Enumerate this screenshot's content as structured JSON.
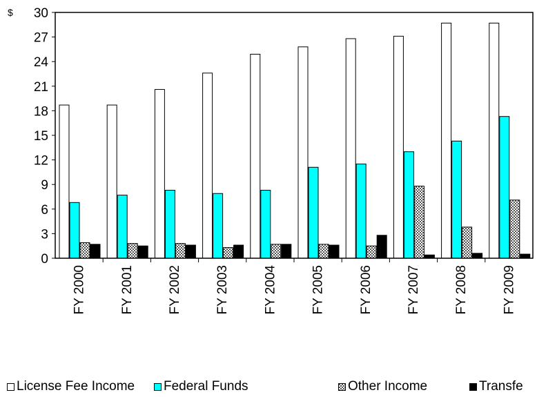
{
  "chart_data": {
    "type": "bar",
    "unit_label": "$",
    "categories": [
      "FY 2000",
      "FY 2001",
      "FY 2002",
      "FY 2003",
      "FY 2004",
      "FY 2005",
      "FY 2006",
      "FY 2007",
      "FY 2008",
      "FY 2009"
    ],
    "series": [
      {
        "name": "License Fee Income",
        "color": "#ffffff",
        "pattern": "solid",
        "values": [
          18.7,
          18.7,
          20.6,
          22.6,
          24.9,
          25.8,
          26.8,
          27.1,
          28.7,
          28.7
        ]
      },
      {
        "name": "Federal Funds",
        "color": "#00ffff",
        "pattern": "solid",
        "values": [
          6.8,
          7.7,
          8.3,
          7.9,
          8.3,
          11.1,
          11.5,
          13.0,
          14.3,
          17.3
        ]
      },
      {
        "name": "Other Income",
        "color": "#808080",
        "pattern": "checker",
        "values": [
          1.9,
          1.8,
          1.8,
          1.3,
          1.7,
          1.7,
          1.5,
          8.8,
          3.8,
          7.1
        ]
      },
      {
        "name": "Transfe",
        "color": "#000000",
        "pattern": "solid",
        "values": [
          1.7,
          1.5,
          1.6,
          1.6,
          1.7,
          1.6,
          2.8,
          0.4,
          0.6,
          0.5
        ]
      }
    ],
    "yticks": [
      "0",
      "3",
      "6",
      "9",
      "12",
      "15",
      "18",
      "21",
      "24",
      "27",
      "30"
    ],
    "ylim": [
      0,
      30
    ],
    "grid": false,
    "legend_position": "bottom"
  }
}
